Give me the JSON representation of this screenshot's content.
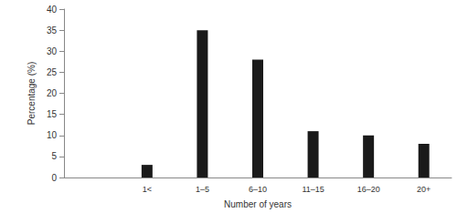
{
  "chart_data": {
    "type": "bar",
    "categories": [
      null,
      "1<",
      "1–5",
      "6–10",
      "11–15",
      "16–20",
      "20+"
    ],
    "values": [
      null,
      3,
      35,
      28,
      11,
      10,
      8
    ],
    "color": "#1a1a1a",
    "x_label": "Number of years",
    "y_label": "Percentage (%)",
    "ylim": [
      0,
      40
    ],
    "yticks": [
      0,
      5,
      10,
      15,
      20,
      25,
      30,
      35,
      40
    ],
    "grid": false
  }
}
